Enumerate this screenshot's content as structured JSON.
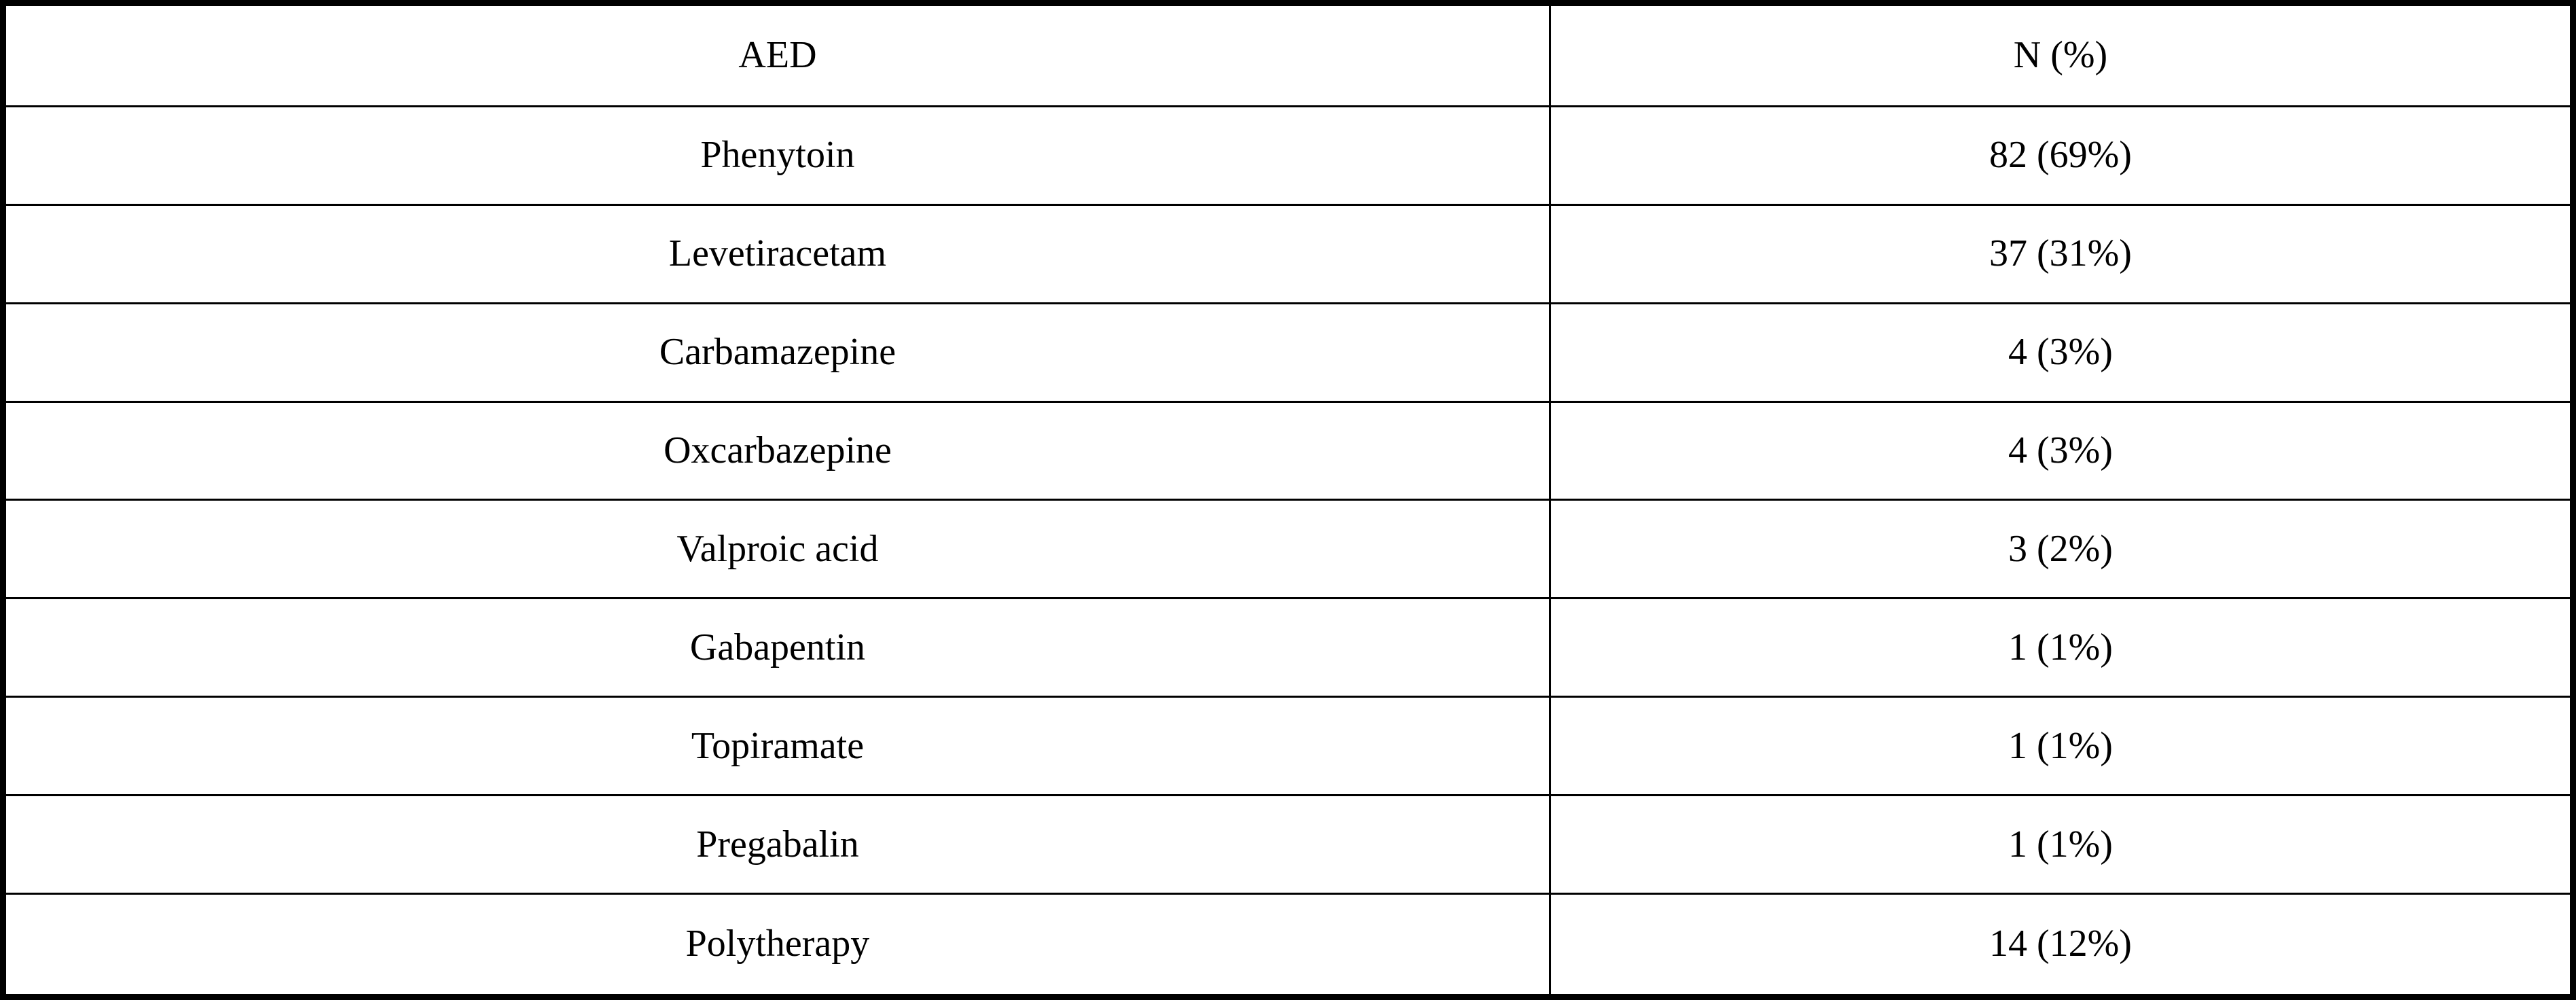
{
  "table": {
    "columns": [
      {
        "label": "AED"
      },
      {
        "label": "N (%)"
      }
    ],
    "rows": [
      {
        "aed": "Phenytoin",
        "n": "82 (69%)"
      },
      {
        "aed": "Levetiracetam",
        "n": "37 (31%)"
      },
      {
        "aed": "Carbamazepine",
        "n": "4 (3%)"
      },
      {
        "aed": "Oxcarbazepine",
        "n": "4 (3%)"
      },
      {
        "aed": "Valproic acid",
        "n": "3 (2%)"
      },
      {
        "aed": "Gabapentin",
        "n": "1 (1%)"
      },
      {
        "aed": "Topiramate",
        "n": "1 (1%)"
      },
      {
        "aed": "Pregabalin",
        "n": "1 (1%)"
      },
      {
        "aed": "Polytherapy",
        "n": "14 (12%)"
      }
    ],
    "colors": {
      "border": "#000000",
      "text": "#000000",
      "background": "#ffffff"
    }
  },
  "chart_data": {
    "type": "table",
    "title": "",
    "columns": [
      "AED",
      "N (%)"
    ],
    "categories": [
      "Phenytoin",
      "Levetiracetam",
      "Carbamazepine",
      "Oxcarbazepine",
      "Valproic acid",
      "Gabapentin",
      "Topiramate",
      "Pregabalin",
      "Polytherapy"
    ],
    "counts": [
      82,
      37,
      4,
      4,
      3,
      1,
      1,
      1,
      14
    ],
    "percents": [
      69,
      31,
      3,
      3,
      2,
      1,
      1,
      1,
      12
    ]
  }
}
